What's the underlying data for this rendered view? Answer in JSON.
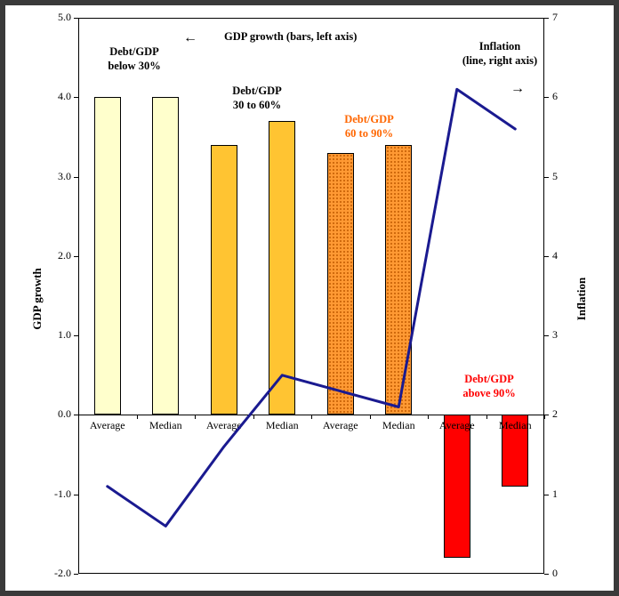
{
  "chart_data": {
    "type": "bar",
    "categories": [
      "Average",
      "Median",
      "Average",
      "Median",
      "Average",
      "Median",
      "Average",
      "Median"
    ],
    "bar_groups": [
      {
        "label": "Debt/GDP below 30%",
        "color": "#FFFFCC",
        "pattern": false
      },
      {
        "label": "Debt/GDP 30 to 60%",
        "color": "#FFC432",
        "pattern": false
      },
      {
        "label": "Debt/GDP 60 to 90%",
        "color": "#FF9933",
        "pattern": true
      },
      {
        "label": "Debt/GDP above 90%",
        "color": "#FF0000",
        "pattern": false
      }
    ],
    "series": [
      {
        "name": "GDP growth (bars, left axis)",
        "type": "bar",
        "axis": "left",
        "values": [
          4.0,
          4.0,
          3.4,
          3.7,
          3.3,
          3.4,
          -1.8,
          -0.9
        ]
      },
      {
        "name": "Inflation (line, right axis)",
        "type": "line",
        "axis": "right",
        "color": "#1A1A90",
        "values": [
          1.1,
          0.6,
          1.6,
          2.5,
          2.3,
          2.1,
          6.1,
          5.6
        ]
      }
    ],
    "left_axis": {
      "title": "GDP growth",
      "min": -2,
      "max": 5,
      "tick_labels": [
        "5.0",
        "4.0",
        "3.0",
        "2.0",
        "1.0",
        "0.0",
        "-1.0",
        "-2.0"
      ],
      "tick_values": [
        5,
        4,
        3,
        2,
        1,
        0,
        -1,
        -2
      ]
    },
    "right_axis": {
      "title": "Inflation",
      "min": 0,
      "max": 7,
      "tick_labels": [
        "7",
        "6",
        "5",
        "4",
        "3",
        "2",
        "1",
        "0"
      ],
      "tick_values": [
        7,
        6,
        5,
        4,
        3,
        2,
        1,
        0
      ]
    },
    "grid": false,
    "legend_position": "annotations-inside-plot"
  },
  "annotations": {
    "below30": "Debt/GDP\nbelow 30%",
    "bars_legend": "GDP growth (bars, left axis)",
    "between3060": "Debt/GDP\n30 to 60%",
    "between6090": "Debt/GDP\n60 to 90%",
    "line_legend": "Inflation\n(line, right axis)",
    "above90": "Debt/GDP\nabove 90%",
    "left_arrow": "←",
    "right_arrow": "→"
  },
  "colors": {
    "line": "#1A1A90",
    "annotation_6090": "#FF6600",
    "annotation_above90": "#FF0000",
    "frame": "#3A3A3A"
  }
}
